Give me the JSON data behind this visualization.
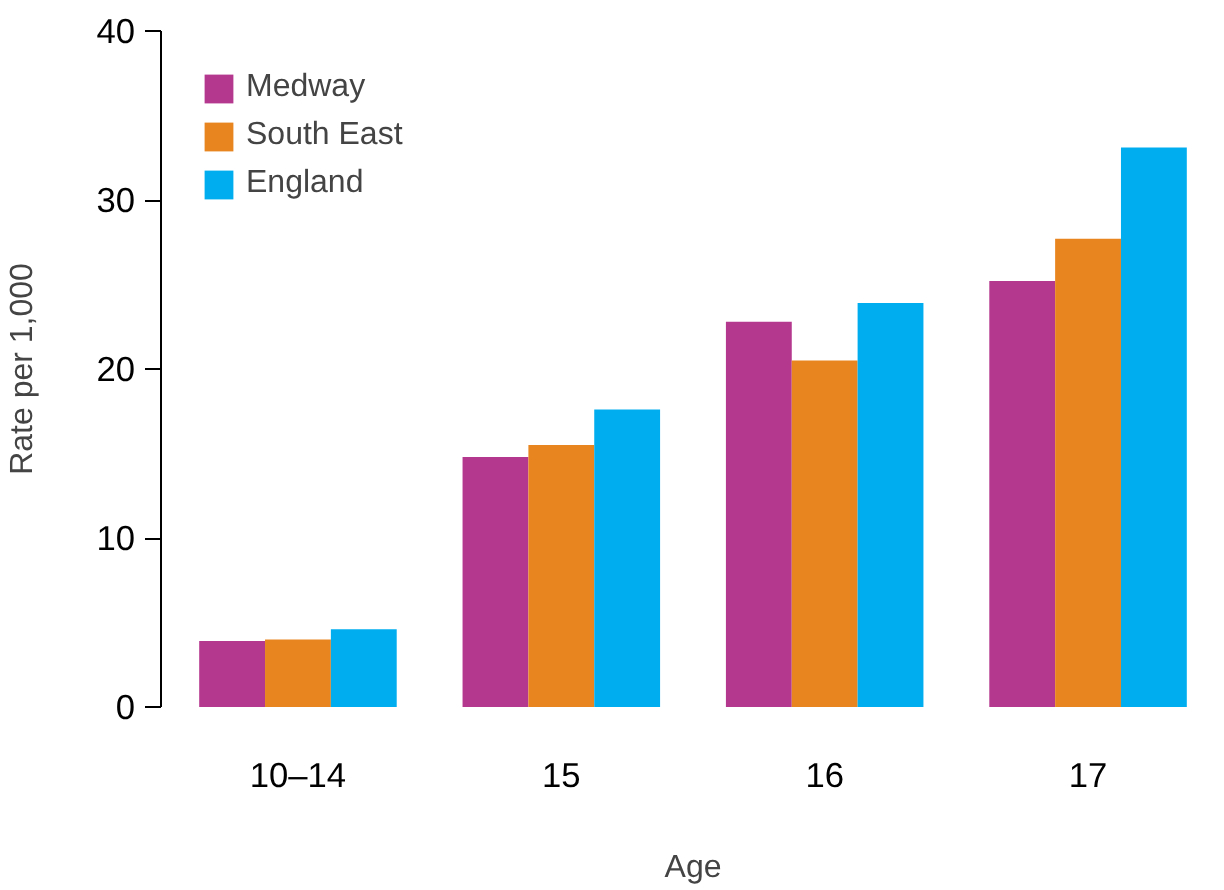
{
  "chart_data": {
    "type": "bar",
    "xlabel": "Age",
    "ylabel": "Rate per 1,000",
    "categories": [
      "10–14",
      "15",
      "16",
      "17"
    ],
    "series": [
      {
        "name": "Medway",
        "color": "#b5388f",
        "values": [
          3.9,
          14.8,
          22.8,
          25.2
        ]
      },
      {
        "name": "South East",
        "color": "#e8851f",
        "values": [
          4.0,
          15.5,
          20.5,
          27.7
        ]
      },
      {
        "name": "England",
        "color": "#00aeef",
        "values": [
          4.6,
          17.6,
          23.9,
          33.1
        ]
      }
    ],
    "ylim": [
      0,
      40
    ],
    "yticks": [
      0,
      10,
      20,
      30,
      40
    ],
    "grid": false,
    "legend": "top left"
  }
}
